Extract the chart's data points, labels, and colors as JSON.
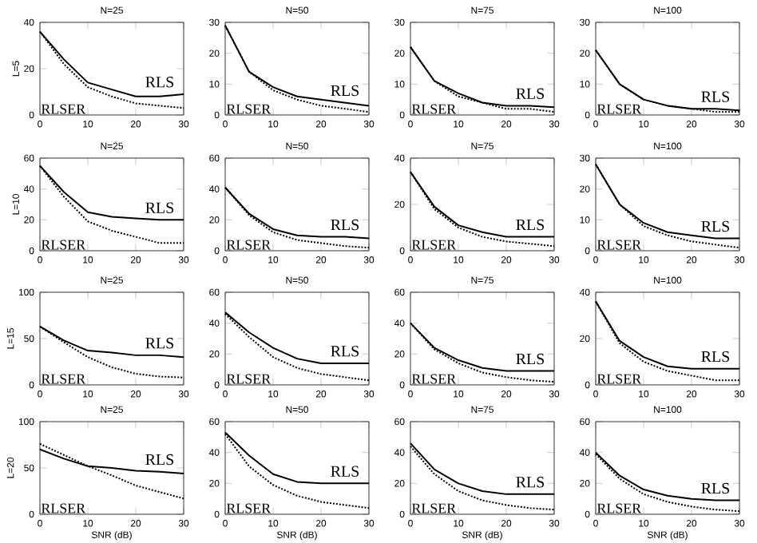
{
  "chart_data": [
    {
      "type": "line",
      "title": "N=25",
      "ylabel": "L=5",
      "x": [
        0,
        5,
        10,
        15,
        20,
        25,
        30
      ],
      "xlim": [
        0,
        30
      ],
      "xticks": [
        0,
        10,
        20,
        30
      ],
      "ylim": [
        0,
        40
      ],
      "yticks": [
        0,
        20,
        40
      ],
      "series": [
        {
          "name": "RLS",
          "color": "#000000",
          "line_style": "solid",
          "values": [
            36,
            24,
            14,
            11,
            8,
            8,
            9
          ]
        },
        {
          "name": "RLSER",
          "color": "#000000",
          "line_style": "dotted",
          "values": [
            36,
            22,
            12,
            8,
            5,
            4,
            3
          ]
        }
      ]
    },
    {
      "type": "line",
      "title": "N=50",
      "x": [
        0,
        5,
        10,
        15,
        20,
        25,
        30
      ],
      "xlim": [
        0,
        30
      ],
      "xticks": [
        0,
        10,
        20,
        30
      ],
      "ylim": [
        0,
        30
      ],
      "yticks": [
        0,
        10,
        20,
        30
      ],
      "series": [
        {
          "name": "RLS",
          "color": "#000000",
          "line_style": "solid",
          "values": [
            29,
            14,
            9,
            6,
            5,
            4,
            3
          ]
        },
        {
          "name": "RLSER",
          "color": "#000000",
          "line_style": "dotted",
          "values": [
            29,
            14,
            8,
            5,
            3,
            2,
            1
          ]
        }
      ]
    },
    {
      "type": "line",
      "title": "N=75",
      "x": [
        0,
        5,
        10,
        15,
        20,
        25,
        30
      ],
      "xlim": [
        0,
        30
      ],
      "xticks": [
        0,
        10,
        20,
        30
      ],
      "ylim": [
        0,
        30
      ],
      "yticks": [
        0,
        10,
        20,
        30
      ],
      "series": [
        {
          "name": "RLS",
          "color": "#000000",
          "line_style": "solid",
          "values": [
            22,
            11,
            7,
            4,
            3,
            3,
            2.5
          ]
        },
        {
          "name": "RLSER",
          "color": "#000000",
          "line_style": "dotted",
          "values": [
            22,
            11,
            6,
            4,
            2,
            2,
            1
          ]
        }
      ]
    },
    {
      "type": "line",
      "title": "N=100",
      "x": [
        0,
        5,
        10,
        15,
        20,
        25,
        30
      ],
      "xlim": [
        0,
        30
      ],
      "xticks": [
        0,
        10,
        20,
        30
      ],
      "ylim": [
        0,
        30
      ],
      "yticks": [
        0,
        10,
        20,
        30
      ],
      "series": [
        {
          "name": "RLS",
          "color": "#000000",
          "line_style": "solid",
          "values": [
            21,
            10,
            5,
            3,
            2,
            2,
            1.5
          ]
        },
        {
          "name": "RLSER",
          "color": "#000000",
          "line_style": "dotted",
          "values": [
            21,
            10,
            5,
            3,
            2,
            1,
            1
          ]
        }
      ]
    },
    {
      "type": "line",
      "title": "N=25",
      "ylabel": "L=10",
      "x": [
        0,
        5,
        10,
        15,
        20,
        25,
        30
      ],
      "xlim": [
        0,
        30
      ],
      "xticks": [
        0,
        10,
        20,
        30
      ],
      "ylim": [
        0,
        60
      ],
      "yticks": [
        0,
        20,
        40,
        60
      ],
      "series": [
        {
          "name": "RLS",
          "color": "#000000",
          "line_style": "solid",
          "values": [
            55,
            38,
            25,
            22,
            21,
            20,
            20
          ]
        },
        {
          "name": "RLSER",
          "color": "#000000",
          "line_style": "dotted",
          "values": [
            55,
            35,
            19,
            13,
            9,
            5,
            5
          ]
        }
      ]
    },
    {
      "type": "line",
      "title": "N=50",
      "x": [
        0,
        5,
        10,
        15,
        20,
        25,
        30
      ],
      "xlim": [
        0,
        30
      ],
      "xticks": [
        0,
        10,
        20,
        30
      ],
      "ylim": [
        0,
        60
      ],
      "yticks": [
        0,
        20,
        40,
        60
      ],
      "series": [
        {
          "name": "RLS",
          "color": "#000000",
          "line_style": "solid",
          "values": [
            41,
            24,
            14,
            10,
            9,
            9,
            8
          ]
        },
        {
          "name": "RLSER",
          "color": "#000000",
          "line_style": "dotted",
          "values": [
            41,
            23,
            12,
            7,
            5,
            3,
            2
          ]
        }
      ]
    },
    {
      "type": "line",
      "title": "N=75",
      "x": [
        0,
        5,
        10,
        15,
        20,
        25,
        30
      ],
      "xlim": [
        0,
        30
      ],
      "xticks": [
        0,
        10,
        20,
        30
      ],
      "ylim": [
        0,
        40
      ],
      "yticks": [
        0,
        20,
        40
      ],
      "series": [
        {
          "name": "RLS",
          "color": "#000000",
          "line_style": "solid",
          "values": [
            34,
            19,
            11,
            8,
            6,
            6,
            6
          ]
        },
        {
          "name": "RLSER",
          "color": "#000000",
          "line_style": "dotted",
          "values": [
            34,
            18,
            10,
            6,
            4,
            3,
            2
          ]
        }
      ]
    },
    {
      "type": "line",
      "title": "N=100",
      "x": [
        0,
        5,
        10,
        15,
        20,
        25,
        30
      ],
      "xlim": [
        0,
        30
      ],
      "xticks": [
        0,
        10,
        20,
        30
      ],
      "ylim": [
        0,
        30
      ],
      "yticks": [
        0,
        10,
        20,
        30
      ],
      "series": [
        {
          "name": "RLS",
          "color": "#000000",
          "line_style": "solid",
          "values": [
            28,
            15,
            9,
            6,
            5,
            4,
            4
          ]
        },
        {
          "name": "RLSER",
          "color": "#000000",
          "line_style": "dotted",
          "values": [
            28,
            15,
            8,
            5,
            3,
            2,
            1
          ]
        }
      ]
    },
    {
      "type": "line",
      "title": "N=25",
      "ylabel": "L=15",
      "x": [
        0,
        5,
        10,
        15,
        20,
        25,
        30
      ],
      "xlim": [
        0,
        30
      ],
      "xticks": [
        0,
        10,
        20,
        30
      ],
      "ylim": [
        0,
        100
      ],
      "yticks": [
        0,
        50,
        100
      ],
      "series": [
        {
          "name": "RLS",
          "color": "#000000",
          "line_style": "solid",
          "values": [
            63,
            48,
            37,
            35,
            32,
            32,
            30
          ]
        },
        {
          "name": "RLSER",
          "color": "#000000",
          "line_style": "dotted",
          "values": [
            63,
            46,
            30,
            19,
            12,
            9,
            8
          ]
        }
      ]
    },
    {
      "type": "line",
      "title": "N=50",
      "x": [
        0,
        5,
        10,
        15,
        20,
        25,
        30
      ],
      "xlim": [
        0,
        30
      ],
      "xticks": [
        0,
        10,
        20,
        30
      ],
      "ylim": [
        0,
        60
      ],
      "yticks": [
        0,
        20,
        40,
        60
      ],
      "series": [
        {
          "name": "RLS",
          "color": "#000000",
          "line_style": "solid",
          "values": [
            47,
            34,
            24,
            17,
            14,
            14,
            14
          ]
        },
        {
          "name": "RLSER",
          "color": "#000000",
          "line_style": "dotted",
          "values": [
            46,
            31,
            18,
            11,
            7,
            5,
            3
          ]
        }
      ]
    },
    {
      "type": "line",
      "title": "N=75",
      "x": [
        0,
        5,
        10,
        15,
        20,
        25,
        30
      ],
      "xlim": [
        0,
        30
      ],
      "xticks": [
        0,
        10,
        20,
        30
      ],
      "ylim": [
        0,
        60
      ],
      "yticks": [
        0,
        20,
        40,
        60
      ],
      "series": [
        {
          "name": "RLS",
          "color": "#000000",
          "line_style": "solid",
          "values": [
            40,
            24,
            16,
            11,
            9,
            9,
            9
          ]
        },
        {
          "name": "RLSER",
          "color": "#000000",
          "line_style": "dotted",
          "values": [
            40,
            23,
            14,
            8,
            5,
            3,
            2
          ]
        }
      ]
    },
    {
      "type": "line",
      "title": "N=100",
      "x": [
        0,
        5,
        10,
        15,
        20,
        25,
        30
      ],
      "xlim": [
        0,
        30
      ],
      "xticks": [
        0,
        10,
        20,
        30
      ],
      "ylim": [
        0,
        40
      ],
      "yticks": [
        0,
        20,
        40
      ],
      "series": [
        {
          "name": "RLS",
          "color": "#000000",
          "line_style": "solid",
          "values": [
            36,
            19,
            12,
            8,
            7,
            7,
            7
          ]
        },
        {
          "name": "RLSER",
          "color": "#000000",
          "line_style": "dotted",
          "values": [
            36,
            18,
            10,
            6,
            4,
            2,
            2
          ]
        }
      ]
    },
    {
      "type": "line",
      "title": "N=25",
      "ylabel": "L=20",
      "xlabel": "SNR (dB)",
      "x": [
        0,
        5,
        10,
        15,
        20,
        25,
        30
      ],
      "xlim": [
        0,
        30
      ],
      "xticks": [
        0,
        10,
        20,
        30
      ],
      "ylim": [
        0,
        100
      ],
      "yticks": [
        0,
        50,
        100
      ],
      "series": [
        {
          "name": "RLS",
          "color": "#000000",
          "line_style": "solid",
          "values": [
            70,
            60,
            52,
            50,
            47,
            46,
            44
          ]
        },
        {
          "name": "RLSER",
          "color": "#000000",
          "line_style": "dotted",
          "values": [
            76,
            64,
            52,
            42,
            31,
            24,
            17
          ]
        }
      ]
    },
    {
      "type": "line",
      "title": "N=50",
      "xlabel": "SNR (dB)",
      "x": [
        0,
        5,
        10,
        15,
        20,
        25,
        30
      ],
      "xlim": [
        0,
        30
      ],
      "xticks": [
        0,
        10,
        20,
        30
      ],
      "ylim": [
        0,
        60
      ],
      "yticks": [
        0,
        20,
        40,
        60
      ],
      "series": [
        {
          "name": "RLS",
          "color": "#000000",
          "line_style": "solid",
          "values": [
            53,
            38,
            26,
            21,
            20,
            20,
            20
          ]
        },
        {
          "name": "RLSER",
          "color": "#000000",
          "line_style": "dotted",
          "values": [
            52,
            31,
            19,
            12,
            8,
            6,
            4
          ]
        }
      ]
    },
    {
      "type": "line",
      "title": "N=75",
      "xlabel": "SNR (dB)",
      "x": [
        0,
        5,
        10,
        15,
        20,
        25,
        30
      ],
      "xlim": [
        0,
        30
      ],
      "xticks": [
        0,
        10,
        20,
        30
      ],
      "ylim": [
        0,
        60
      ],
      "yticks": [
        0,
        20,
        40,
        60
      ],
      "series": [
        {
          "name": "RLS",
          "color": "#000000",
          "line_style": "solid",
          "values": [
            46,
            29,
            20,
            15,
            13,
            13,
            13
          ]
        },
        {
          "name": "RLSER",
          "color": "#000000",
          "line_style": "dotted",
          "values": [
            44,
            26,
            15,
            9,
            6,
            4,
            3
          ]
        }
      ]
    },
    {
      "type": "line",
      "title": "N=100",
      "xlabel": "SNR (dB)",
      "x": [
        0,
        5,
        10,
        15,
        20,
        25,
        30
      ],
      "xlim": [
        0,
        30
      ],
      "xticks": [
        0,
        10,
        20,
        30
      ],
      "ylim": [
        0,
        60
      ],
      "yticks": [
        0,
        20,
        40,
        60
      ],
      "series": [
        {
          "name": "RLS",
          "color": "#000000",
          "line_style": "solid",
          "values": [
            40,
            25,
            16,
            12,
            10,
            9,
            9
          ]
        },
        {
          "name": "RLSER",
          "color": "#000000",
          "line_style": "dotted",
          "values": [
            39,
            23,
            13,
            8,
            5,
            3,
            2
          ]
        }
      ]
    }
  ]
}
